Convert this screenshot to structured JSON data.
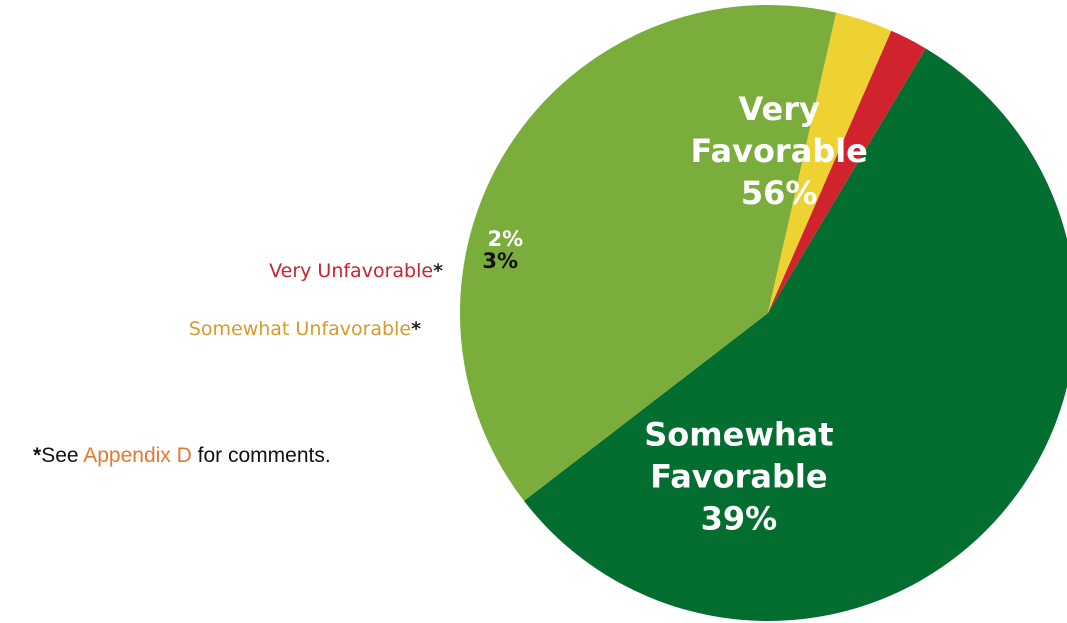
{
  "chart_data": {
    "type": "pie",
    "slices": [
      {
        "label": "Very Favorable",
        "label_line1": "Very",
        "label_line2": "Favorable",
        "value": 56,
        "value_text": "56%",
        "color": "#036e30",
        "text_color": "#ffffff"
      },
      {
        "label": "Somewhat Favorable",
        "label_line1": "Somewhat",
        "label_line2": "Favorable",
        "value": 39,
        "value_text": "39%",
        "color": "#7bad3c",
        "text_color": "#ffffff"
      },
      {
        "label": "Somewhat Unfavorable",
        "value": 3,
        "value_text": "3%",
        "color": "#eed231",
        "text_color": "#111111",
        "side_label_color": "#d99a2b"
      },
      {
        "label": "Very Unfavorable",
        "value": 2,
        "value_text": "2%",
        "color": "#d1232e",
        "text_color": "#ffffff",
        "side_label_color": "#cc2230"
      }
    ]
  },
  "labels": {
    "very_unfavorable": "Very Unfavorable",
    "somewhat_unfavorable": "Somewhat Unfavorable",
    "asterisk": "*"
  },
  "footnote": {
    "star": "*",
    "prefix": "See ",
    "link": "Appendix D",
    "suffix": " for comments.",
    "link_color": "#e8772e"
  }
}
